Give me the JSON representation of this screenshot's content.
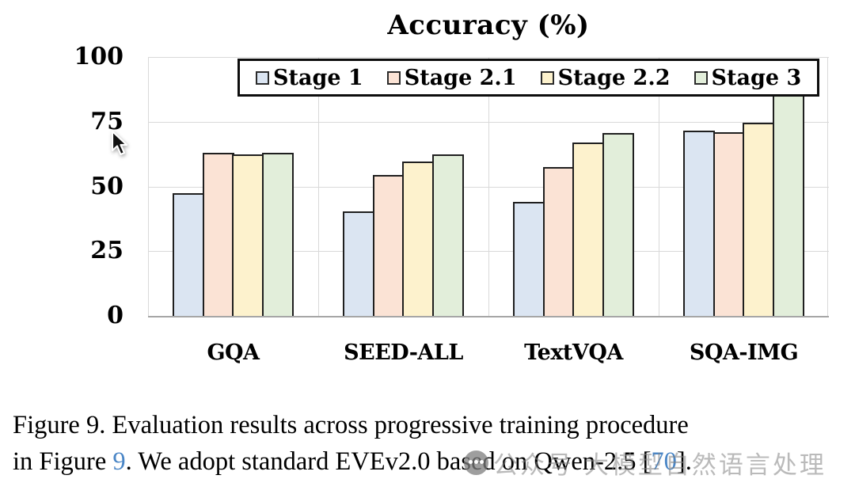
{
  "chart": {
    "title": "Accuracy (%)"
  },
  "chart_data": {
    "type": "bar",
    "title": "Accuracy (%)",
    "categories": [
      "GQA",
      "SEED-ALL",
      "TextVQA",
      "SQA-IMG"
    ],
    "series": [
      {
        "name": "Stage 1",
        "color": "#dbe5f2",
        "values": [
          47.5,
          40.5,
          44.0,
          71.5
        ]
      },
      {
        "name": "Stage 2.1",
        "color": "#fbe3d5",
        "values": [
          63.0,
          54.5,
          57.5,
          71.0
        ]
      },
      {
        "name": "Stage 2.2",
        "color": "#fdf2cd",
        "values": [
          62.5,
          59.5,
          67.0,
          74.5
        ]
      },
      {
        "name": "Stage 3",
        "color": "#e2eeda",
        "values": [
          63.0,
          62.5,
          70.5,
          96.0
        ]
      }
    ],
    "ylabel": "",
    "xlabel": "",
    "ylim": [
      0,
      100
    ],
    "yticks": [
      0,
      25,
      50,
      75,
      100
    ],
    "grid": true,
    "legend_position": "top",
    "bar_border_color": "#1f1f1f",
    "gridline_color": "#d9d9d9"
  },
  "caption": {
    "line1": "Figure 9. Evaluation results across progressive training procedure",
    "line2_prefix": "in Figure ",
    "line2_ref1": "9",
    "line2_mid": ". We adopt standard EVEv2.0 based on Qwen-2.5 [",
    "line2_ref2": "70",
    "line2_suffix": "].",
    "link_color": "#4a86c6"
  },
  "watermark": {
    "icon": "chat-bubble-icon",
    "text": "公众号 大模型自然语言处理",
    "color": "#828282"
  }
}
